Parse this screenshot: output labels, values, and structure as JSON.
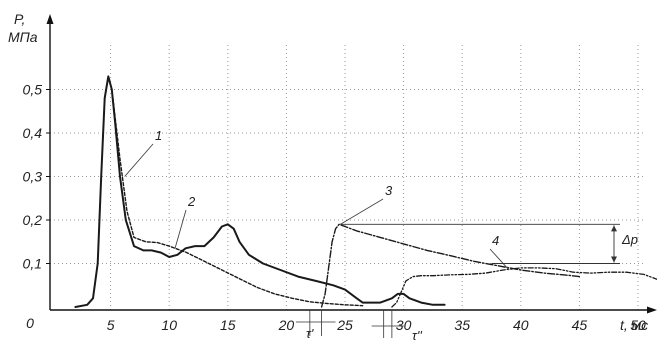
{
  "chart_data": {
    "type": "line",
    "xlabel": "t, мс",
    "ylabel_line1": "P,",
    "ylabel_line2": "МПа",
    "xlim": [
      0,
      55
    ],
    "ylim": [
      0,
      0.6
    ],
    "grid": true,
    "x_ticks": [
      {
        "value": 0,
        "label": "0"
      },
      {
        "value": 5,
        "label": "5"
      },
      {
        "value": 10,
        "label": "10"
      },
      {
        "value": 15,
        "label": "15"
      },
      {
        "value": 20,
        "label": "20"
      },
      {
        "value": 25,
        "label": "25"
      },
      {
        "value": 30,
        "label": "30"
      },
      {
        "value": 35,
        "label": "35"
      },
      {
        "value": 40,
        "label": "40"
      },
      {
        "value": 45,
        "label": "45"
      },
      {
        "value": 50,
        "label": "50"
      }
    ],
    "y_ticks": [
      {
        "value": 0.1,
        "label": "0,1"
      },
      {
        "value": 0.2,
        "label": "0,2"
      },
      {
        "value": 0.3,
        "label": "0,3"
      },
      {
        "value": 0.4,
        "label": "0,4"
      },
      {
        "value": 0.5,
        "label": "0,5"
      }
    ],
    "series": [
      {
        "name": "1",
        "style": "solid",
        "x": [
          2.0,
          3.0,
          3.5,
          3.9,
          4.2,
          4.5,
          4.8,
          5.1,
          5.4,
          5.8,
          6.3,
          7.0,
          7.8,
          8.5,
          9.3,
          10.0,
          10.7,
          11.4,
          12.2,
          13.0,
          13.8,
          14.5,
          15.0,
          15.5,
          16.0,
          16.8,
          18.0,
          19.5,
          21.0,
          22.5,
          24.0,
          25.0,
          26.0,
          26.5,
          27.0,
          28.0,
          29.0,
          29.5,
          30.0,
          30.5,
          31.5,
          32.5,
          33.5
        ],
        "y": [
          0.0,
          0.005,
          0.02,
          0.1,
          0.3,
          0.48,
          0.53,
          0.5,
          0.42,
          0.3,
          0.2,
          0.14,
          0.13,
          0.13,
          0.125,
          0.115,
          0.12,
          0.135,
          0.14,
          0.14,
          0.16,
          0.185,
          0.19,
          0.18,
          0.15,
          0.12,
          0.1,
          0.085,
          0.07,
          0.06,
          0.05,
          0.04,
          0.02,
          0.01,
          0.01,
          0.01,
          0.02,
          0.03,
          0.03,
          0.02,
          0.01,
          0.005,
          0.005
        ]
      },
      {
        "name": "2",
        "style": "dashed",
        "x": [
          5.2,
          5.8,
          6.4,
          7.0,
          8.0,
          9.0,
          10.0,
          11.5,
          13.0,
          14.5,
          16.0,
          17.5,
          19.0,
          20.5,
          22.0,
          23.5,
          25.0,
          26.5
        ],
        "y": [
          0.48,
          0.34,
          0.22,
          0.16,
          0.15,
          0.148,
          0.14,
          0.125,
          0.105,
          0.085,
          0.065,
          0.045,
          0.03,
          0.02,
          0.012,
          0.008,
          0.005,
          0.003
        ]
      },
      {
        "name": "3",
        "style": "dash-dot",
        "x": [
          23.0,
          23.3,
          23.6,
          23.9,
          24.2,
          24.5,
          25.0,
          26.0,
          28.0,
          30.0,
          32.0,
          34.0,
          36.0,
          38.0,
          40.0,
          42.0,
          44.0,
          45.0
        ],
        "y": [
          0.0,
          0.03,
          0.09,
          0.15,
          0.18,
          0.19,
          0.185,
          0.175,
          0.16,
          0.145,
          0.13,
          0.118,
          0.105,
          0.095,
          0.085,
          0.078,
          0.073,
          0.07
        ]
      },
      {
        "name": "4",
        "style": "dash-dot-dot",
        "x": [
          29.0,
          29.4,
          29.8,
          30.2,
          30.8,
          31.5,
          32.5,
          34.0,
          35.5,
          37.0,
          38.5,
          40.0,
          41.5,
          43.0,
          44.5,
          46.0,
          47.5,
          49.0,
          50.5,
          52.0,
          53.5,
          55.0
        ],
        "y": [
          0.0,
          0.01,
          0.035,
          0.06,
          0.07,
          0.072,
          0.072,
          0.074,
          0.075,
          0.078,
          0.085,
          0.09,
          0.09,
          0.088,
          0.08,
          0.078,
          0.08,
          0.08,
          0.075,
          0.06,
          0.045,
          0.03
        ]
      }
    ],
    "annotations": {
      "delta_p": "Δp",
      "tau_prime": "τ'",
      "tau_double_prime": "τ''"
    },
    "colors": {
      "line": "#1a1a1a",
      "grid": "#9a9a9a"
    }
  }
}
